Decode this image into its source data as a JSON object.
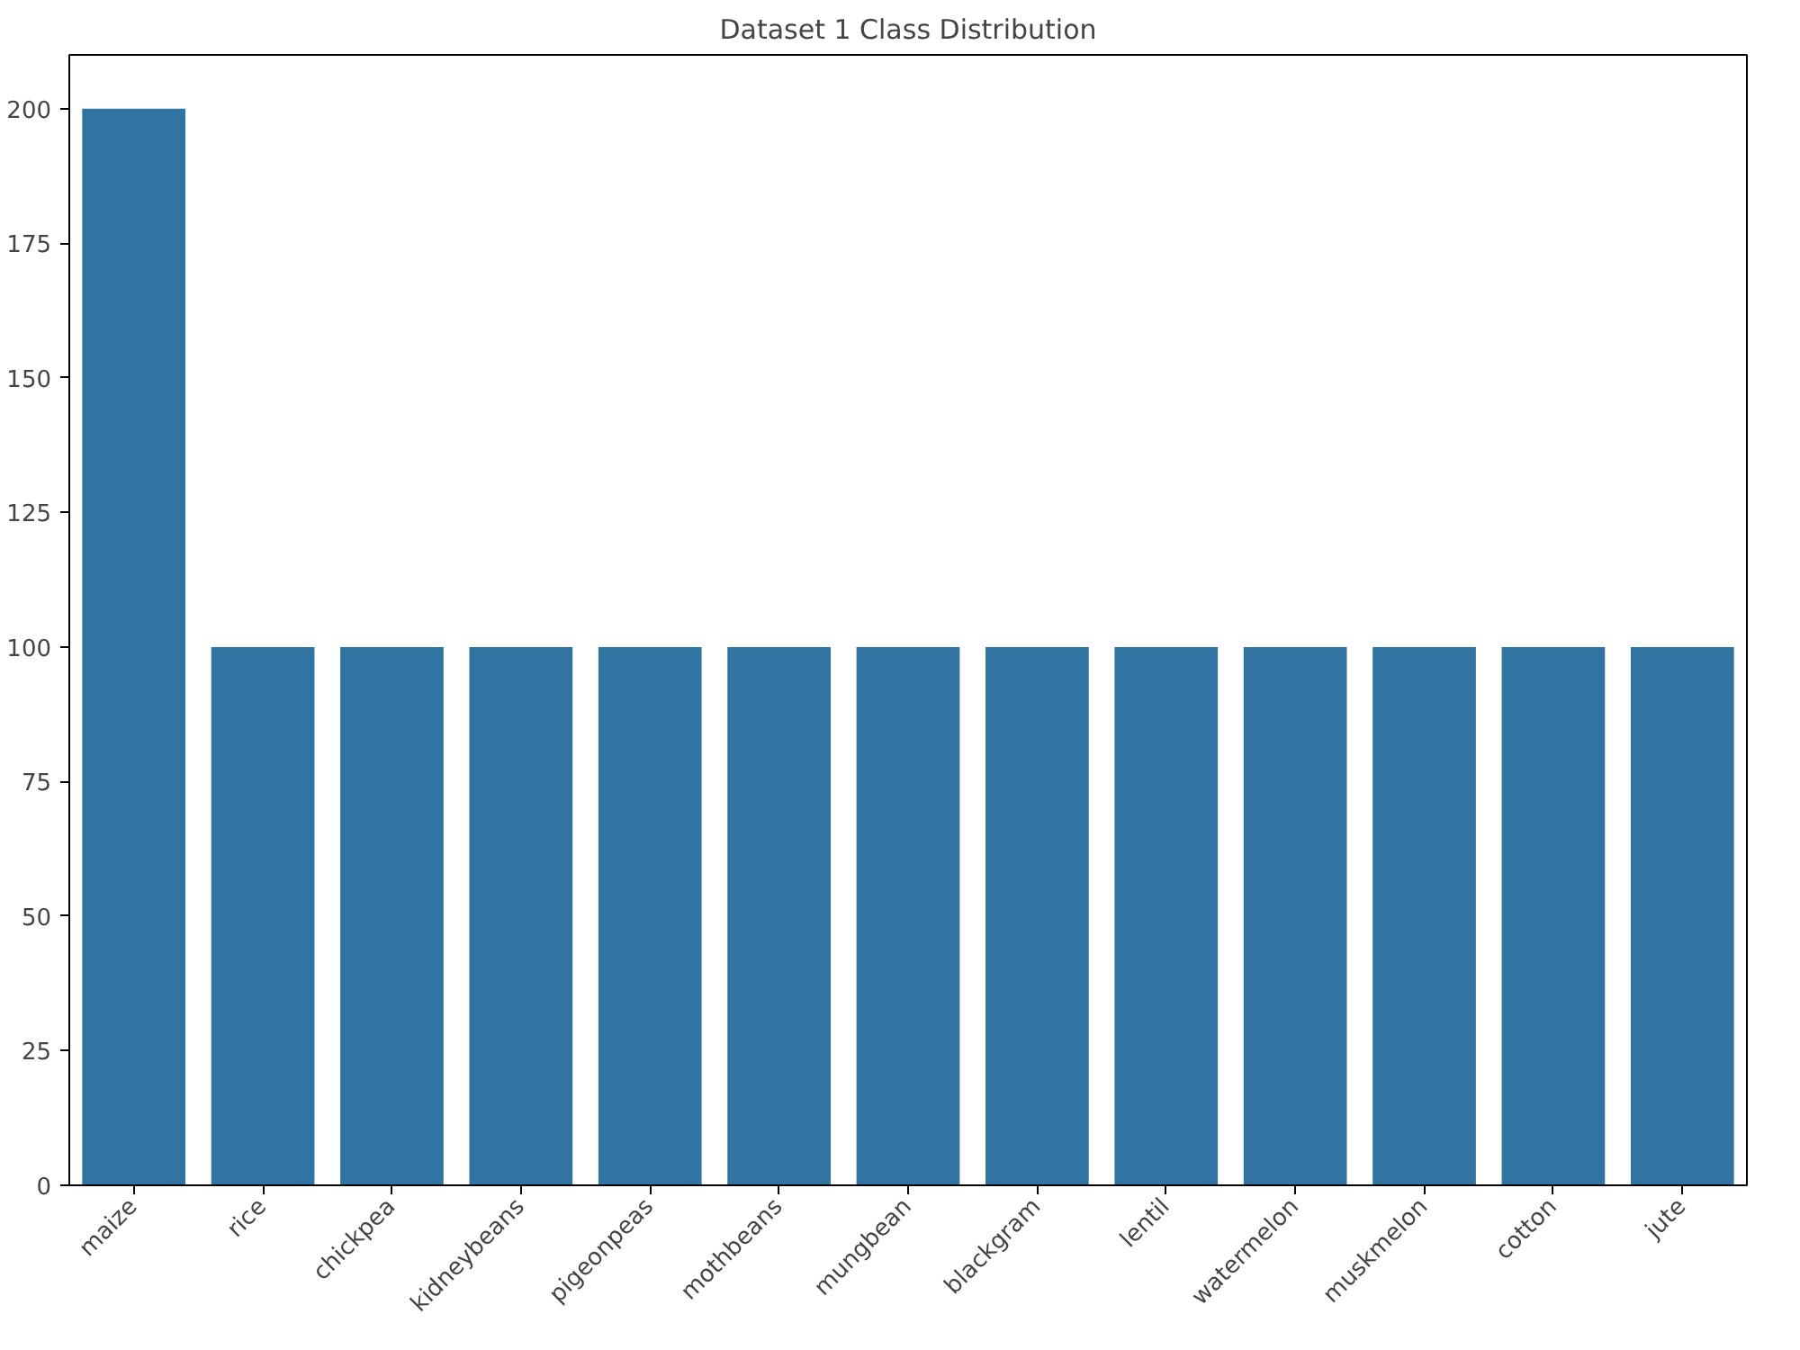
{
  "chart_data": {
    "type": "bar",
    "title": "Dataset 1 Class Distribution",
    "categories": [
      "maize",
      "rice",
      "chickpea",
      "kidneybeans",
      "pigeonpeas",
      "mothbeans",
      "mungbean",
      "blackgram",
      "lentil",
      "watermelon",
      "muskmelon",
      "cotton",
      "jute"
    ],
    "values": [
      200,
      100,
      100,
      100,
      100,
      100,
      100,
      100,
      100,
      100,
      100,
      100,
      100
    ],
    "color": "#3274a1",
    "ylim": [
      0,
      210
    ],
    "yticks": [
      0,
      25,
      50,
      75,
      100,
      125,
      150,
      175,
      200
    ],
    "grid": false
  }
}
